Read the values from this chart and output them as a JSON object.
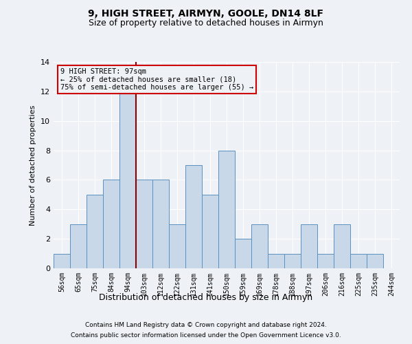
{
  "title1": "9, HIGH STREET, AIRMYN, GOOLE, DN14 8LF",
  "title2": "Size of property relative to detached houses in Airmyn",
  "xlabel": "Distribution of detached houses by size in Airmyn",
  "ylabel": "Number of detached properties",
  "categories": [
    "56sqm",
    "65sqm",
    "75sqm",
    "84sqm",
    "94sqm",
    "103sqm",
    "112sqm",
    "122sqm",
    "131sqm",
    "141sqm",
    "150sqm",
    "159sqm",
    "169sqm",
    "178sqm",
    "188sqm",
    "197sqm",
    "206sqm",
    "216sqm",
    "225sqm",
    "235sqm",
    "244sqm"
  ],
  "values": [
    1,
    3,
    5,
    6,
    12,
    6,
    6,
    3,
    7,
    5,
    8,
    2,
    3,
    1,
    1,
    3,
    1,
    3,
    1,
    1,
    0
  ],
  "bar_color": "#c8d8e8",
  "bar_edge_color": "#5a90c0",
  "highlight_bar_index": 4,
  "highlight_line_color": "#8b0000",
  "ylim": [
    0,
    14
  ],
  "yticks": [
    0,
    2,
    4,
    6,
    8,
    10,
    12,
    14
  ],
  "annotation_text": "9 HIGH STREET: 97sqm\n← 25% of detached houses are smaller (18)\n75% of semi-detached houses are larger (55) →",
  "annotation_box_color": "#cc0000",
  "footer1": "Contains HM Land Registry data © Crown copyright and database right 2024.",
  "footer2": "Contains public sector information licensed under the Open Government Licence v3.0.",
  "background_color": "#eef2f6",
  "grid_color": "#ffffff"
}
